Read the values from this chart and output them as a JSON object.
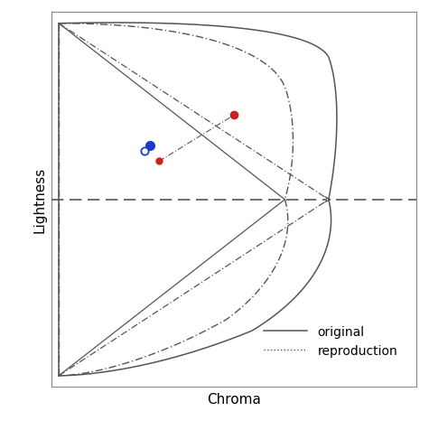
{
  "xlabel": "Chroma",
  "ylabel": "Lightness",
  "fig_width": 4.75,
  "fig_height": 4.77,
  "dpi": 100,
  "background": "#ffffff",
  "line_color": "#555555",
  "dot_blue": "#1a3acc",
  "dot_red": "#cc2020",
  "legend_original": "original",
  "legend_repro": "reproduction"
}
